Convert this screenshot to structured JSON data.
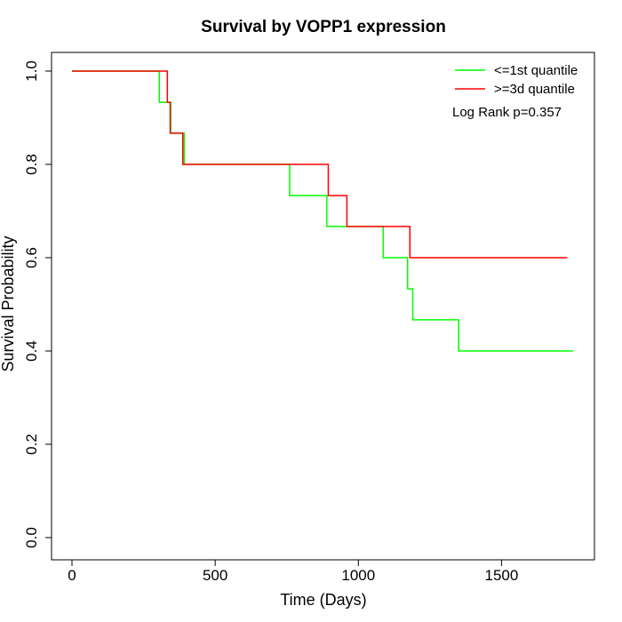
{
  "chart_data": {
    "type": "line",
    "step": true,
    "title": "Survival by VOPP1 expression",
    "xlabel": "Time (Days)",
    "ylabel": "Survival Probability",
    "xlim": [
      0,
      1750
    ],
    "ylim": [
      0,
      1
    ],
    "xticks": [
      0,
      500,
      1000,
      1500
    ],
    "xtick_labels": [
      "0",
      "500",
      "1000",
      "1500"
    ],
    "yticks": [
      0,
      0.2,
      0.4,
      0.6,
      0.8,
      1.0
    ],
    "ytick_labels": [
      "0.0",
      "0.2",
      "0.4",
      "0.6",
      "0.8",
      "1.0"
    ],
    "grid": false,
    "legend_position": "top-right",
    "annotation": "Log Rank p=0.357",
    "series": [
      {
        "name": "<=1st quantile",
        "color": "#00ff00",
        "points": [
          [
            0,
            1.0
          ],
          [
            305,
            1.0
          ],
          [
            305,
            0.933
          ],
          [
            345,
            0.933
          ],
          [
            345,
            0.867
          ],
          [
            392,
            0.867
          ],
          [
            392,
            0.8
          ],
          [
            760,
            0.8
          ],
          [
            760,
            0.733
          ],
          [
            890,
            0.733
          ],
          [
            890,
            0.667
          ],
          [
            1087,
            0.667
          ],
          [
            1087,
            0.6
          ],
          [
            1172,
            0.6
          ],
          [
            1172,
            0.533
          ],
          [
            1190,
            0.533
          ],
          [
            1190,
            0.467
          ],
          [
            1350,
            0.467
          ],
          [
            1350,
            0.4
          ],
          [
            1750,
            0.4
          ]
        ]
      },
      {
        "name": ">=3d quantile",
        "color": "#ff0000",
        "points": [
          [
            0,
            1.0
          ],
          [
            333,
            1.0
          ],
          [
            333,
            0.933
          ],
          [
            343,
            0.933
          ],
          [
            343,
            0.867
          ],
          [
            387,
            0.867
          ],
          [
            387,
            0.8
          ],
          [
            895,
            0.8
          ],
          [
            895,
            0.733
          ],
          [
            960,
            0.733
          ],
          [
            960,
            0.667
          ],
          [
            1180,
            0.667
          ],
          [
            1180,
            0.6
          ],
          [
            1730,
            0.6
          ]
        ]
      }
    ]
  }
}
